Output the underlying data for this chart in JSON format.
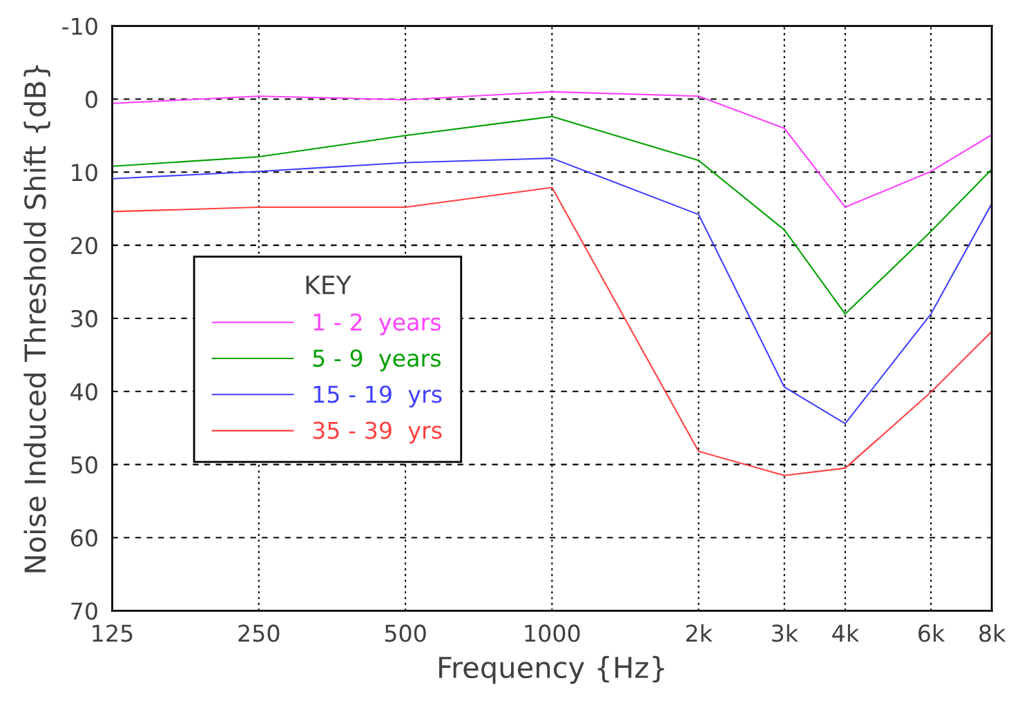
{
  "chart_data": {
    "type": "line",
    "xlabel": "Frequency {Hz}",
    "ylabel": "Noise Induced Threshold Shift {dB}",
    "legend_title": "KEY",
    "legend": "left",
    "x": [
      125,
      250,
      500,
      1000,
      2000,
      3000,
      4000,
      6000,
      8000
    ],
    "series": [
      {
        "name": "1 - 2  years",
        "color": "#ff40ff",
        "values": [
          0.6,
          -0.4,
          0.1,
          -1.0,
          -0.4,
          4.0,
          14.8,
          9.9,
          4.9
        ]
      },
      {
        "name": "5 - 9  years",
        "color": "#00a000",
        "values": [
          9.2,
          7.9,
          5.0,
          2.4,
          8.4,
          17.9,
          29.4,
          18.1,
          9.6
        ]
      },
      {
        "name": "15 - 19  yrs",
        "color": "#4040ff",
        "values": [
          10.9,
          9.9,
          8.7,
          8.1,
          15.8,
          39.4,
          44.4,
          29.4,
          14.3
        ]
      },
      {
        "name": "35 - 39  yrs",
        "color": "#ff4040",
        "values": [
          15.4,
          14.8,
          14.8,
          12.1,
          48.2,
          51.5,
          50.5,
          40.1,
          31.8
        ]
      }
    ],
    "log": "x",
    "xlim": [
      125,
      8000
    ],
    "ylim": [
      70,
      -10
    ],
    "xticks": [
      125,
      250,
      500,
      1000,
      {
        "value": 2000,
        "label": "2k"
      },
      {
        "value": 3000,
        "label": "3k"
      },
      {
        "value": 4000,
        "label": "4k"
      },
      {
        "value": 6000,
        "label": "6k"
      },
      {
        "value": 8000,
        "label": "8k"
      }
    ],
    "yticks": [
      -10,
      0,
      10,
      20,
      30,
      40,
      50,
      60,
      70
    ],
    "grid": true,
    "marker": "none",
    "line_style": "solid"
  }
}
